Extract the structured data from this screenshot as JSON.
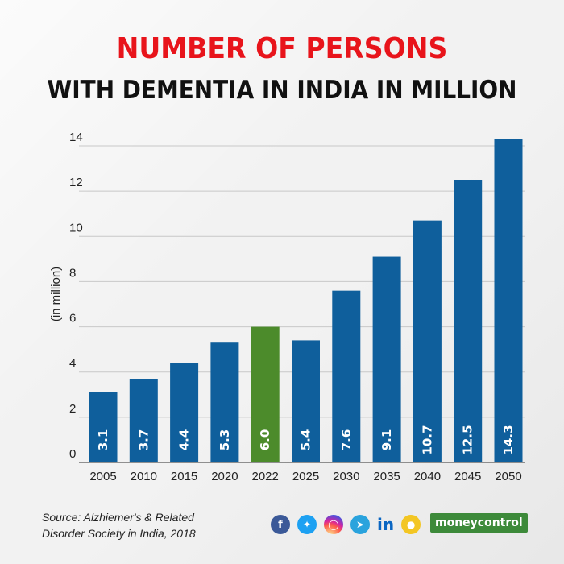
{
  "title_line1": "NUMBER OF PERSONS",
  "title_line2": "WITH DEMENTIA IN INDIA IN MILLION",
  "source_line1": "Source: Alzhiemer's & Related",
  "source_line2": "Disorder Society in India, 2018",
  "brand": "moneycontrol",
  "colors": {
    "bar": "#0f5f9c",
    "highlight": "#4c8b2b",
    "title_red": "#e8141b"
  },
  "social_icons": [
    "facebook-icon",
    "twitter-icon",
    "instagram-icon",
    "telegram-icon",
    "linkedin-icon",
    "koo-icon"
  ],
  "chart_data": {
    "type": "bar",
    "title": "NUMBER OF PERSONS WITH DEMENTIA IN INDIA IN MILLION",
    "xlabel": "",
    "ylabel": "(in million)",
    "categories": [
      "2005",
      "2010",
      "2015",
      "2020",
      "2022",
      "2025",
      "2030",
      "2035",
      "2040",
      "2045",
      "2050"
    ],
    "values": [
      3.1,
      3.7,
      4.4,
      5.3,
      6.0,
      5.4,
      7.6,
      9.1,
      10.7,
      12.5,
      14.3
    ],
    "value_labels": [
      "3.1",
      "3.7",
      "4.4",
      "5.3",
      "6.0",
      "5.4",
      "7.6",
      "9.1",
      "10.7",
      "12.5",
      "14.3"
    ],
    "highlight_category": "2022",
    "ylim": [
      0,
      14
    ],
    "yticks": [
      0,
      2,
      4,
      6,
      8,
      10,
      12,
      14
    ],
    "grid": true,
    "legend": "none"
  }
}
